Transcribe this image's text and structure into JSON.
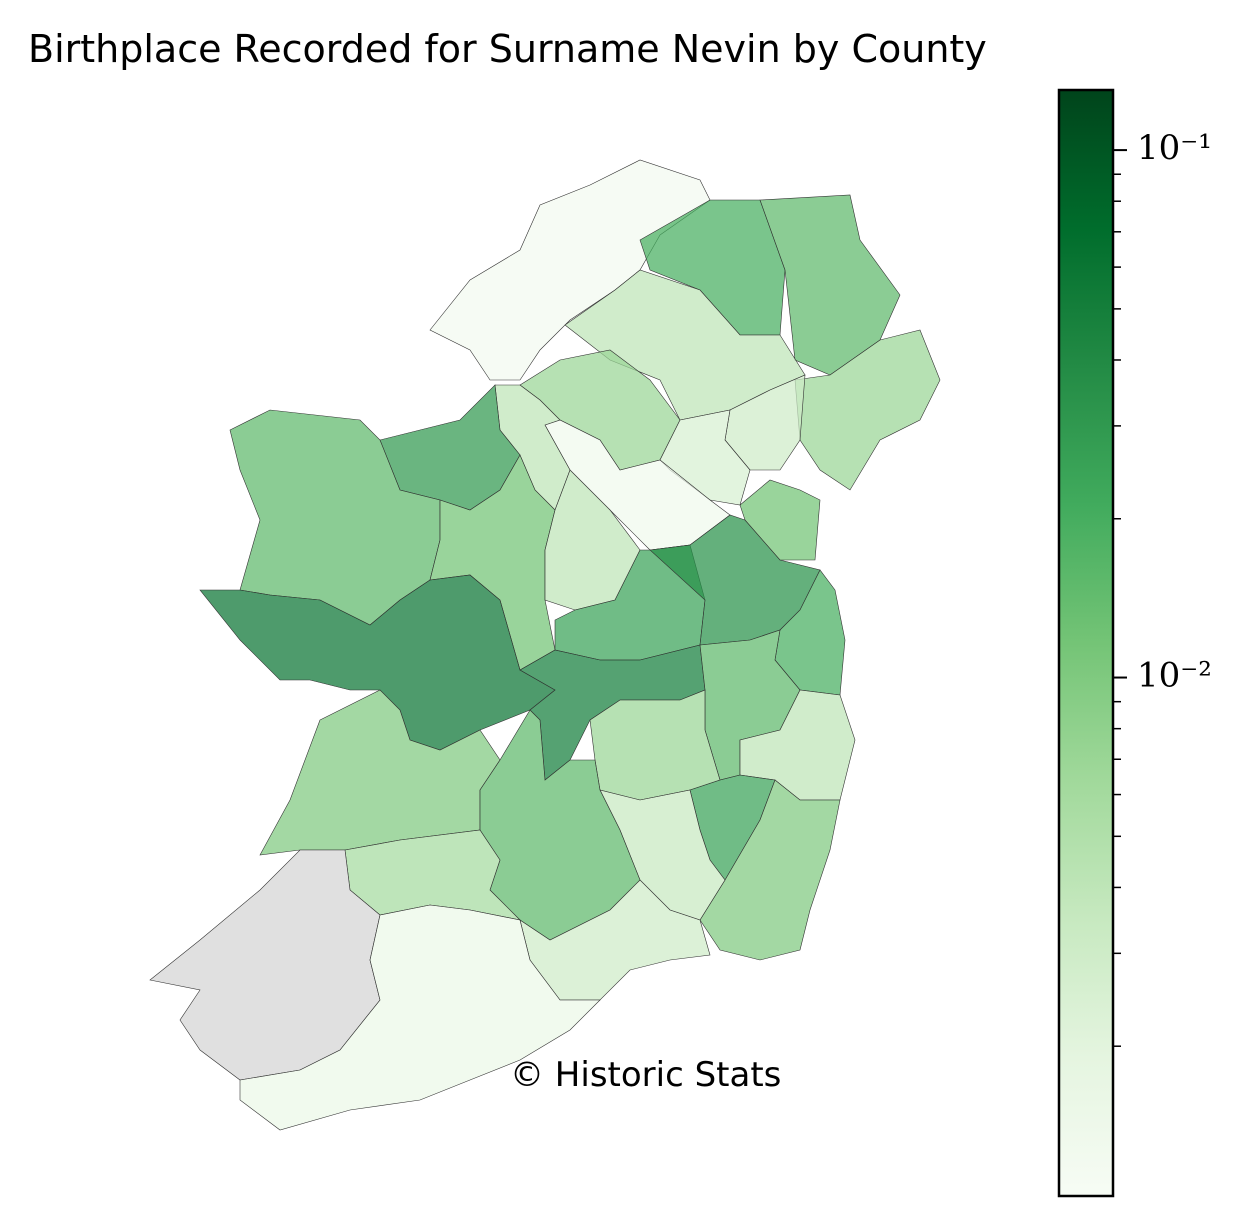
{
  "chart_data": {
    "type": "choropleth",
    "title": "Birthplace Recorded for Surname Nevin by County",
    "annotation": "© Historic Stats",
    "values": [
      0.0012,
      0.02,
      0.015,
      0.007,
      0.004,
      0.003,
      0.007,
      0.0025,
      0.0013,
      0.004,
      0.03,
      0.015,
      0.012,
      0.004,
      0.025,
      0.035,
      0.012,
      0.02,
      0.06,
      0.05,
      0.015,
      0.007,
      0.004,
      0.025,
      0.01,
      0.0035,
      0.01,
      0.015,
      0.006,
      0.003,
      null,
      0.0015
    ],
    "colormap": [
      "#f7fcf5",
      "#e5f5e0",
      "#c7e9c0",
      "#a1d99b",
      "#74c476",
      "#41ab5d",
      "#238b45",
      "#006d2c",
      "#00441b"
    ],
    "missing_color": "#e0e0e0",
    "log_scale": true,
    "clim": [
      0.00104,
      0.13
    ],
    "cticks": [
      {
        "value": 0.1,
        "label": "10⁻¹"
      },
      {
        "value": 0.01,
        "label": "10⁻²"
      }
    ],
    "minor_cticks": [
      0.002,
      0.003,
      0.004,
      0.005,
      0.006,
      0.007,
      0.008,
      0.009,
      0.02,
      0.03,
      0.04,
      0.05,
      0.06,
      0.07,
      0.08,
      0.09
    ]
  }
}
